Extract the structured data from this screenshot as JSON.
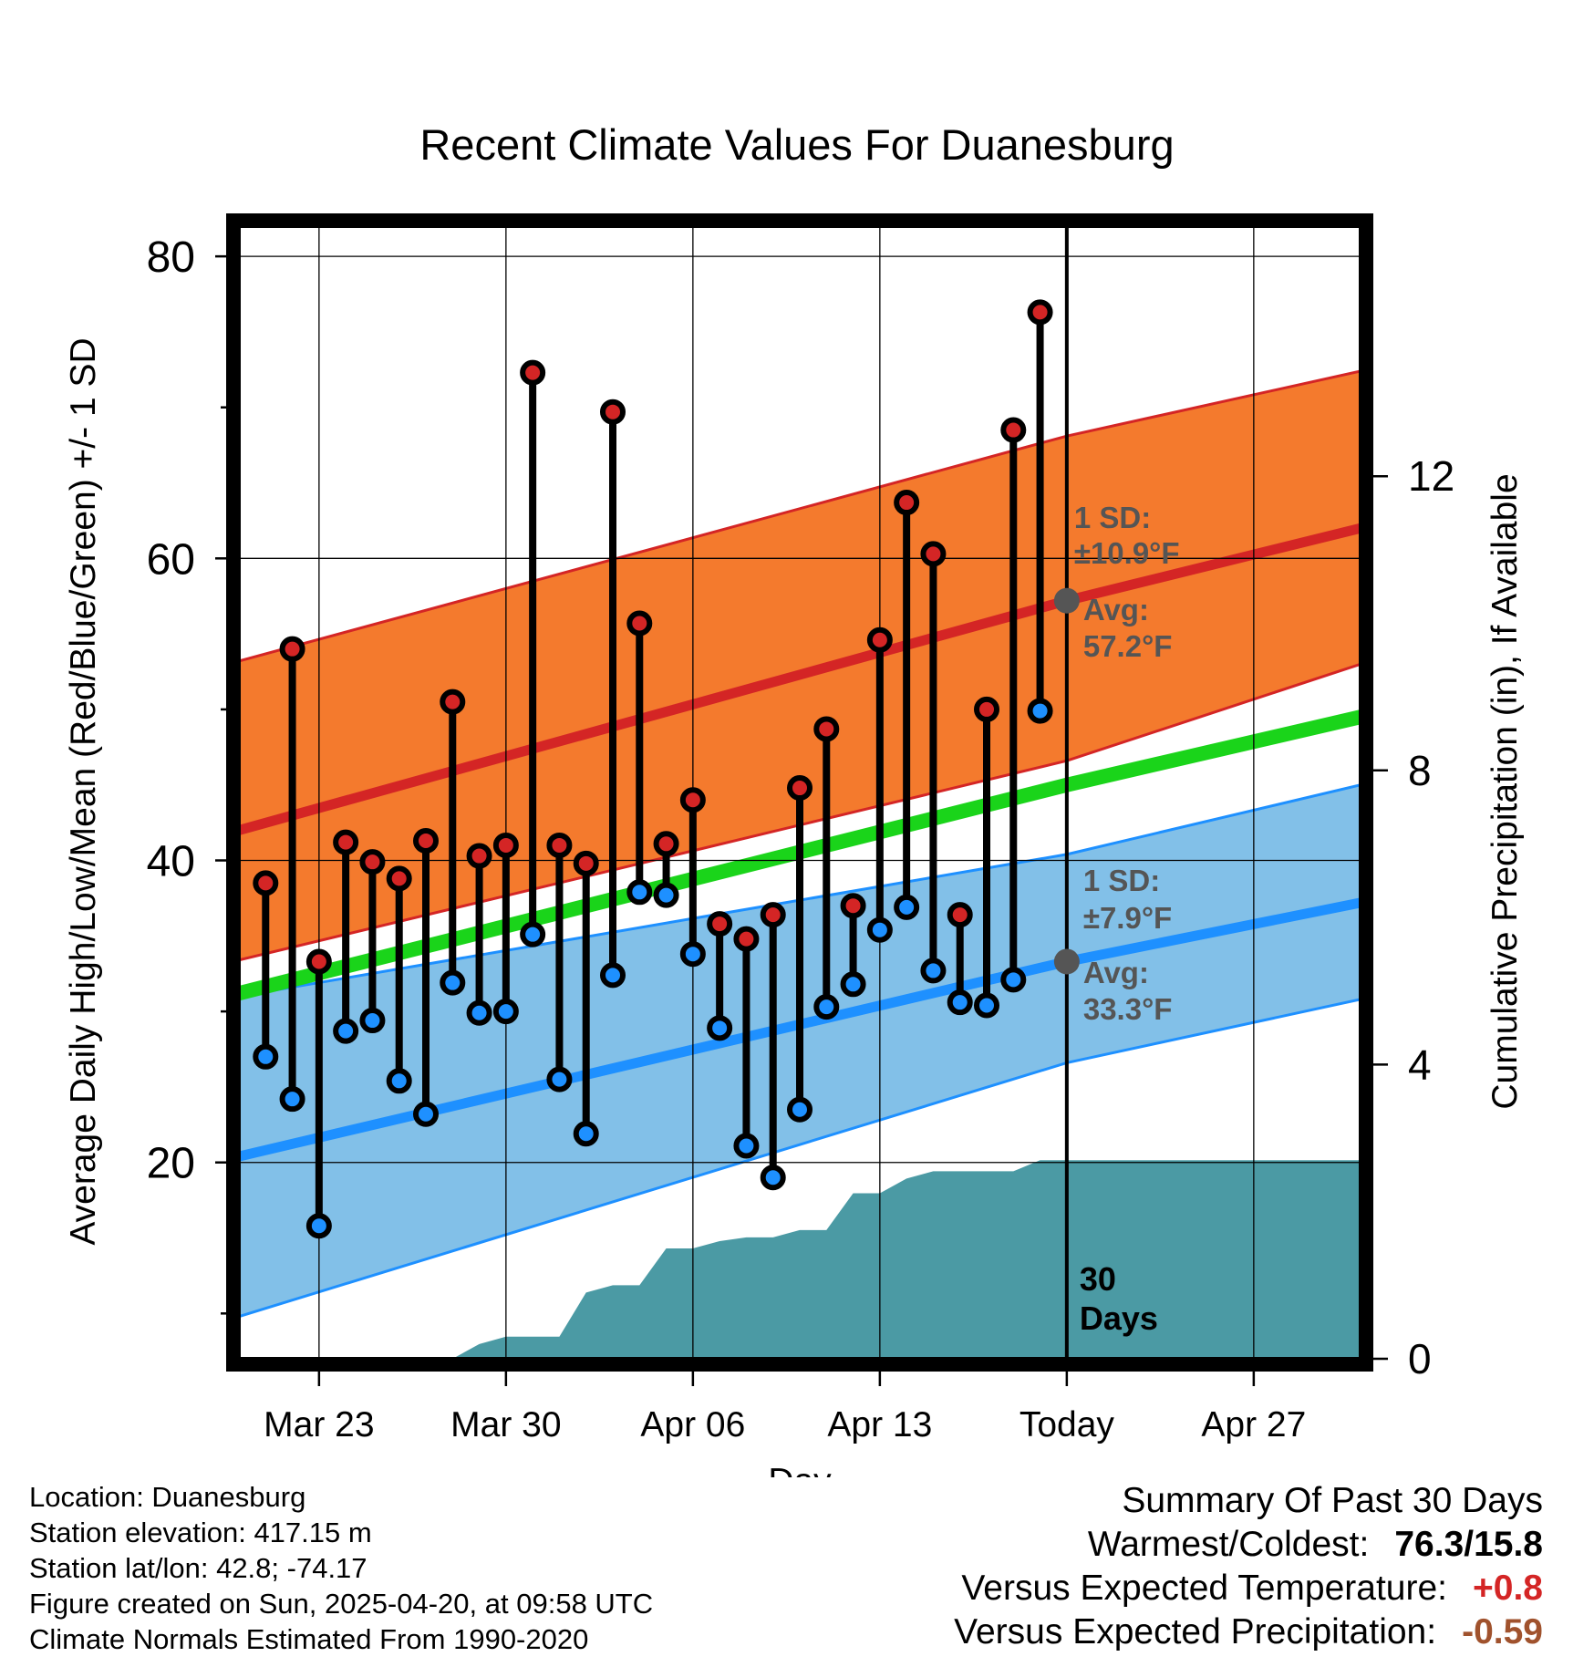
{
  "title": "Recent Climate Values For Duanesburg",
  "chart_data": {
    "type": "line",
    "xlabel": "Day",
    "ylabel": "Average Daily High/Low/Mean (Red/Blue/Green) +/- 1 SD",
    "y2label": "Cumulative Precipitation (in), If Available",
    "x_ticks": [
      "Mar 23",
      "Mar 30",
      "Apr 06",
      "Apr 13",
      "Today",
      "Apr 27"
    ],
    "x_range": [
      "2025-03-20",
      "2025-05-01"
    ],
    "ylim": [
      7,
      82
    ],
    "y_ticks": [
      20,
      40,
      60,
      80
    ],
    "y2lim": [
      0,
      15.4
    ],
    "y2_ticks": [
      0,
      4,
      8,
      12
    ],
    "grid": true,
    "today": "2025-04-20",
    "today_label": "Today",
    "window_label": "30\nDays",
    "normals": {
      "dates": [
        "2025-03-20",
        "2025-04-20",
        "2025-05-01"
      ],
      "high_mean": [
        42.0,
        57.2,
        62.0
      ],
      "high_upper": [
        53.2,
        68.1,
        72.4
      ],
      "high_lower": [
        33.4,
        46.6,
        53.0
      ],
      "mean": [
        31.2,
        45.0,
        49.5
      ],
      "low_mean": [
        20.4,
        33.3,
        37.2
      ],
      "low_upper": [
        31.0,
        40.4,
        45.0
      ],
      "low_lower": [
        9.8,
        26.6,
        30.8
      ]
    },
    "high_annotation": {
      "sd": "1 SD:",
      "sd_value": "±10.9°F",
      "avg": "Avg:",
      "avg_value": "57.2°F",
      "value": 57.2
    },
    "low_annotation": {
      "sd": "1 SD:",
      "sd_value": "±7.9°F",
      "avg": "Avg:",
      "avg_value": "33.3°F",
      "value": 33.3
    },
    "series": [
      {
        "name": "High",
        "dates": [
          "2025-03-21",
          "2025-03-22",
          "2025-03-23",
          "2025-03-24",
          "2025-03-25",
          "2025-03-26",
          "2025-03-27",
          "2025-03-28",
          "2025-03-29",
          "2025-03-30",
          "2025-03-31",
          "2025-04-01",
          "2025-04-02",
          "2025-04-03",
          "2025-04-04",
          "2025-04-05",
          "2025-04-06",
          "2025-04-07",
          "2025-04-08",
          "2025-04-09",
          "2025-04-10",
          "2025-04-11",
          "2025-04-12",
          "2025-04-13",
          "2025-04-14",
          "2025-04-15",
          "2025-04-16",
          "2025-04-17",
          "2025-04-18",
          "2025-04-19"
        ],
        "values": [
          38.5,
          54.0,
          33.3,
          41.2,
          39.9,
          38.8,
          41.3,
          50.5,
          40.3,
          41.0,
          72.3,
          41.0,
          39.8,
          69.7,
          55.7,
          41.1,
          44.0,
          35.8,
          34.8,
          36.4,
          44.8,
          48.7,
          37.0,
          54.6,
          63.7,
          60.3,
          36.4,
          50.0,
          68.5,
          76.3
        ]
      },
      {
        "name": "Low",
        "values": [
          27.0,
          24.2,
          15.8,
          28.7,
          29.4,
          25.4,
          23.2,
          31.9,
          29.9,
          30.0,
          35.1,
          25.5,
          21.9,
          32.4,
          37.9,
          37.7,
          33.8,
          28.9,
          21.1,
          19.0,
          23.5,
          30.3,
          31.8,
          35.4,
          36.9,
          32.7,
          30.6,
          30.4,
          32.1,
          49.9
        ]
      }
    ],
    "precip": {
      "dates": [
        "2025-03-27",
        "2025-03-28",
        "2025-03-29",
        "2025-03-30",
        "2025-03-31",
        "2025-04-01",
        "2025-04-02",
        "2025-04-03",
        "2025-04-04",
        "2025-04-05",
        "2025-04-06",
        "2025-04-07",
        "2025-04-08",
        "2025-04-09",
        "2025-04-10",
        "2025-04-11",
        "2025-04-12",
        "2025-04-13",
        "2025-04-14",
        "2025-04-15",
        "2025-04-16",
        "2025-04-17",
        "2025-04-18",
        "2025-04-19",
        "2025-04-20",
        "2025-05-01"
      ],
      "values": [
        0.0,
        0.0,
        0.2,
        0.3,
        0.3,
        0.3,
        0.9,
        1.0,
        1.0,
        1.5,
        1.5,
        1.6,
        1.65,
        1.65,
        1.75,
        1.75,
        2.25,
        2.25,
        2.45,
        2.55,
        2.55,
        2.55,
        2.55,
        2.7,
        2.7,
        2.7
      ]
    },
    "colors": {
      "high": "#d42525",
      "high_band": "#f47a2d",
      "low": "#1e90ff",
      "low_band": "#82c0e8",
      "mean": "#1ad41a",
      "precip": "#4b9aa4",
      "annotation": "#555555",
      "frame": "#000000"
    }
  },
  "footer": {
    "location": "Location: Duanesburg",
    "elevation": "Station elevation: 417.15 m",
    "latlon": "Station lat/lon: 42.8; -74.17",
    "created": "Figure created on Sun, 2025-04-20, at 09:58 UTC",
    "normals": "Climate Normals Estimated From 1990-2020"
  },
  "summary": {
    "title": "Summary Of Past 30 Days",
    "warmest_label": "Warmest/Coldest:",
    "warmest_value": "76.3/15.8",
    "temp_label": "Versus Expected Temperature:",
    "temp_value": "+0.8",
    "precip_label": "Versus Expected Precipitation:",
    "precip_value": "-0.59"
  }
}
